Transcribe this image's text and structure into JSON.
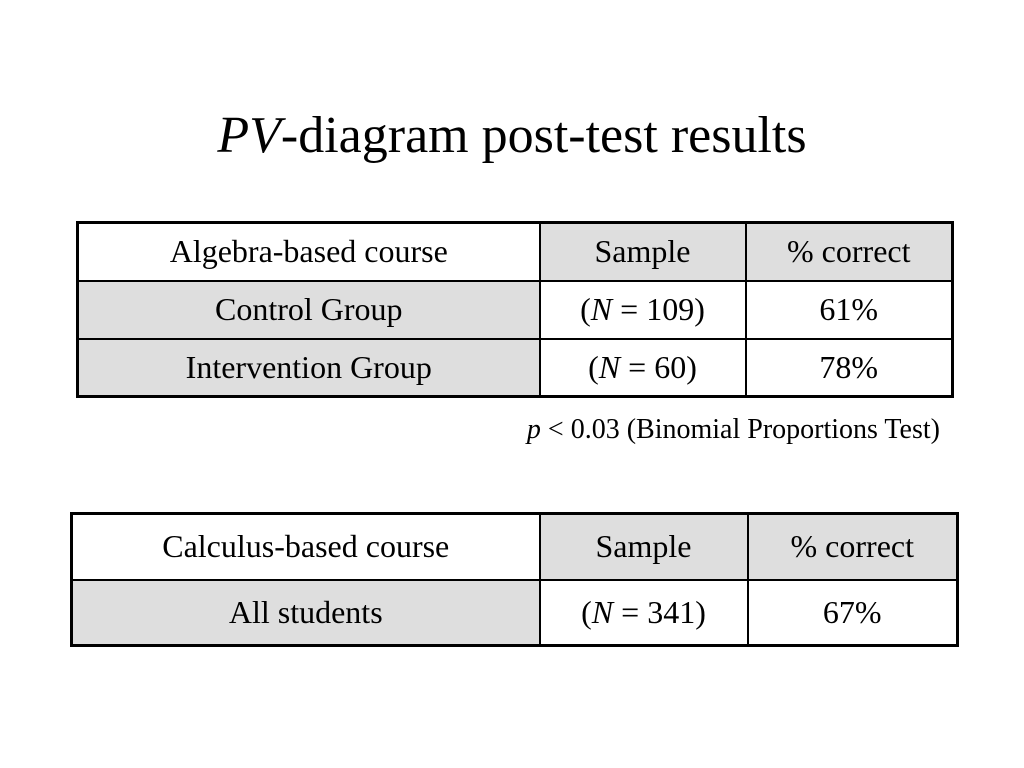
{
  "title": {
    "italic_part": "PV",
    "rest": "-diagram post-test results"
  },
  "algebra_table": {
    "header": {
      "course": "Algebra-based course",
      "sample": "Sample",
      "correct": "% correct"
    },
    "rows": [
      {
        "group": "Control Group",
        "n_prefix": "(",
        "n_var": "N",
        "n_suffix": " = 109)",
        "correct": "61%"
      },
      {
        "group": "Intervention Group",
        "n_prefix": "(",
        "n_var": "N",
        "n_suffix": " = 60)",
        "correct": "78%"
      }
    ]
  },
  "stat_note": {
    "p_var": "p",
    "text": " < 0.03 (Binomial Proportions Test)"
  },
  "calculus_table": {
    "header": {
      "course": "Calculus-based course",
      "sample": "Sample",
      "correct": "% correct"
    },
    "rows": [
      {
        "group": "All students",
        "n_prefix": "(",
        "n_var": "N",
        "n_suffix": " = 341)",
        "correct": "67%"
      }
    ]
  },
  "colors": {
    "shaded_cell": "#dedede",
    "background": "#ffffff",
    "border": "#000000"
  }
}
